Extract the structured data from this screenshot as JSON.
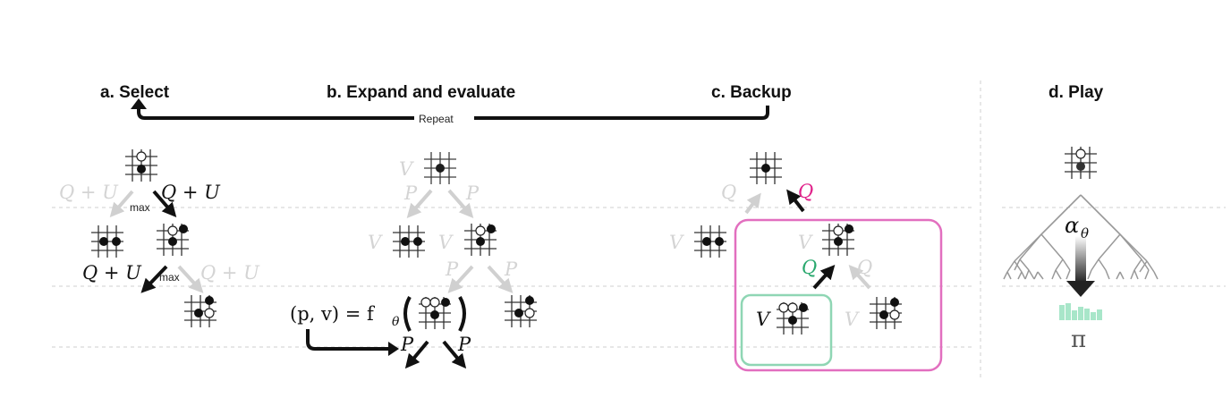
{
  "titles": {
    "select": "a. Select",
    "expand": "b. Expand and evaluate",
    "backup": "c. Backup",
    "play": "d. Play"
  },
  "repeat_label": "Repeat",
  "select": {
    "qu_top_left": "Q + U",
    "qu_top_right": "Q + U",
    "max_top": "max",
    "qu_mid_left": "Q + U",
    "max_mid": "max",
    "qu_mid_right": "Q + U"
  },
  "expand": {
    "v_root": "V",
    "p_left": "P",
    "p_right": "P",
    "v_mid_left": "V",
    "v_mid_right": "V",
    "p_low_left": "P",
    "p_low_right": "P",
    "formula_left": "(p, v) = f",
    "formula_sub": "θ",
    "p_out_left": "P",
    "p_out_right": "P"
  },
  "backup": {
    "q_root_left": "Q",
    "q_root_pink": "Q",
    "v_left": "V",
    "v_mid": "V",
    "q_green": "Q",
    "q_gray": "Q",
    "v_leaf": "V",
    "v_leaf_right": "V"
  },
  "play": {
    "alpha": "α",
    "alpha_sub": "θ",
    "pi": "π"
  },
  "colors": {
    "pink": "#e26fbf",
    "green": "#8fd6b4",
    "light_arrow": "#d0d0d0",
    "dashed": "#c9c9c9"
  }
}
